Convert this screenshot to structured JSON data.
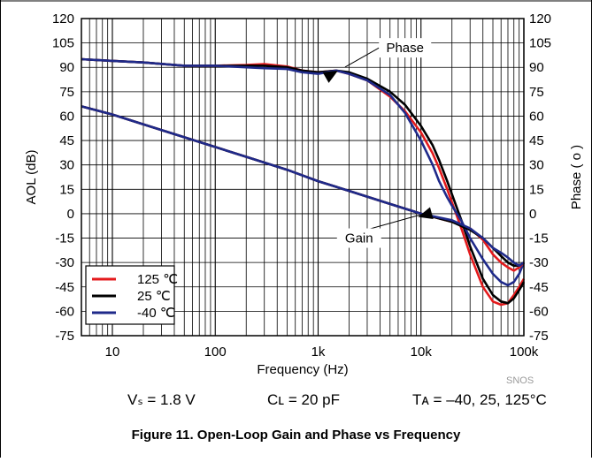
{
  "chart_data": {
    "type": "line",
    "title": "",
    "xlabel": "Frequency (Hz)",
    "ylabel": "AOL (dB)",
    "y2label": "Phase ( o )",
    "xscale": "log",
    "xlim": [
      5,
      100000
    ],
    "ylim": [
      -75,
      120
    ],
    "y2lim": [
      -75,
      120
    ],
    "x_ticks": [
      10,
      100,
      1000,
      10000,
      100000
    ],
    "x_tick_labels": [
      "10",
      "100",
      "1k",
      "10k",
      "100k"
    ],
    "y_ticks": [
      -75,
      -60,
      -45,
      -30,
      -15,
      0,
      15,
      30,
      45,
      60,
      75,
      90,
      105,
      120
    ],
    "y_tick_labels": [
      "-75",
      "-60",
      "-45",
      "-30",
      "-15",
      "0",
      "15",
      "30",
      "45",
      "60",
      "75",
      "90",
      "105",
      "120"
    ],
    "grid": true,
    "legend_position": "bottom-left",
    "watermark": "SNOS",
    "annotations": [
      {
        "text": "Phase",
        "x": 1500,
        "y": 88,
        "tx": 7000,
        "ty": 102
      },
      {
        "text": "Gain",
        "x": 9000,
        "y": -2,
        "tx": 2500,
        "ty": -15
      }
    ],
    "series": [
      {
        "name": "125 ℃",
        "color": "#e41a1c",
        "kind": "phase",
        "x": [
          5,
          10,
          20,
          50,
          100,
          200,
          300,
          500,
          700,
          1000,
          1500,
          2000,
          3000,
          5000,
          7000,
          10000,
          13000,
          15000,
          18000,
          20000,
          25000,
          30000,
          40000,
          50000,
          60000,
          70000,
          80000,
          90000,
          100000
        ],
        "y": [
          95,
          94,
          93,
          91,
          91,
          91.5,
          92,
          90.5,
          88,
          87,
          88,
          86,
          82,
          72,
          63,
          50,
          37,
          28,
          15,
          7,
          -10,
          -25,
          -45,
          -54,
          -56,
          -55,
          -50,
          -45,
          -40
        ]
      },
      {
        "name": "25 ℃",
        "color": "#000000",
        "kind": "phase",
        "x": [
          5,
          10,
          20,
          50,
          100,
          200,
          300,
          500,
          700,
          1000,
          1500,
          2000,
          3000,
          5000,
          7000,
          10000,
          13000,
          15000,
          18000,
          20000,
          25000,
          30000,
          40000,
          50000,
          60000,
          70000,
          80000,
          90000,
          100000
        ],
        "y": [
          95,
          94,
          93,
          91,
          91,
          91,
          91,
          90,
          88,
          87,
          88,
          87,
          83,
          75,
          67,
          54,
          42,
          33,
          20,
          12,
          -5,
          -20,
          -40,
          -50,
          -54,
          -55,
          -52,
          -47,
          -42
        ]
      },
      {
        "name": "-40 ℃",
        "color": "#1f2a8a",
        "kind": "phase",
        "x": [
          5,
          10,
          20,
          50,
          100,
          200,
          300,
          500,
          700,
          1000,
          1500,
          2000,
          3000,
          5000,
          7000,
          10000,
          13000,
          15000,
          18000,
          20000,
          25000,
          30000,
          40000,
          50000,
          60000,
          70000,
          80000,
          90000,
          100000
        ],
        "y": [
          95,
          94,
          93,
          91,
          91,
          90,
          89.5,
          89,
          87,
          86,
          88,
          86,
          82,
          73,
          62,
          45,
          30,
          20,
          10,
          5,
          -5,
          -15,
          -28,
          -37,
          -42,
          -44,
          -42,
          -37,
          -30
        ]
      },
      {
        "name": "",
        "color": "#e41a1c",
        "kind": "gain",
        "x": [
          5,
          10,
          20,
          50,
          100,
          200,
          500,
          1000,
          2000,
          5000,
          10000,
          20000,
          30000,
          40000,
          50000,
          60000,
          70000,
          80000,
          90000,
          100000
        ],
        "y": [
          66,
          61,
          55,
          47,
          41,
          35,
          27,
          20,
          14,
          6,
          0,
          -5,
          -9,
          -16,
          -25,
          -30,
          -33,
          -35,
          -33,
          -30
        ]
      },
      {
        "name": "",
        "color": "#000000",
        "kind": "gain",
        "x": [
          5,
          10,
          20,
          50,
          100,
          200,
          500,
          1000,
          2000,
          5000,
          10000,
          20000,
          30000,
          40000,
          50000,
          60000,
          70000,
          80000,
          90000,
          100000
        ],
        "y": [
          66,
          61,
          55,
          47,
          41,
          35,
          27,
          20,
          14,
          6,
          0,
          -5,
          -10,
          -15,
          -21,
          -26,
          -30,
          -32,
          -32,
          -30
        ]
      },
      {
        "name": "",
        "color": "#1f2a8a",
        "kind": "gain",
        "x": [
          5,
          10,
          20,
          50,
          100,
          200,
          500,
          1000,
          2000,
          5000,
          10000,
          20000,
          30000,
          40000,
          50000,
          60000,
          70000,
          80000,
          90000,
          100000
        ],
        "y": [
          66,
          61,
          55,
          47,
          41,
          35,
          27,
          20,
          14,
          6,
          0,
          -4,
          -9,
          -15,
          -21,
          -24,
          -27,
          -30,
          -32,
          -30
        ]
      }
    ]
  },
  "conditions": {
    "vs": "Vₛ = 1.8 V",
    "cl": "Cʟ = 20 pF",
    "ta": "Tᴀ = –40, 25, 125°C"
  },
  "caption": "Figure 11. Open-Loop Gain and Phase vs Frequency"
}
